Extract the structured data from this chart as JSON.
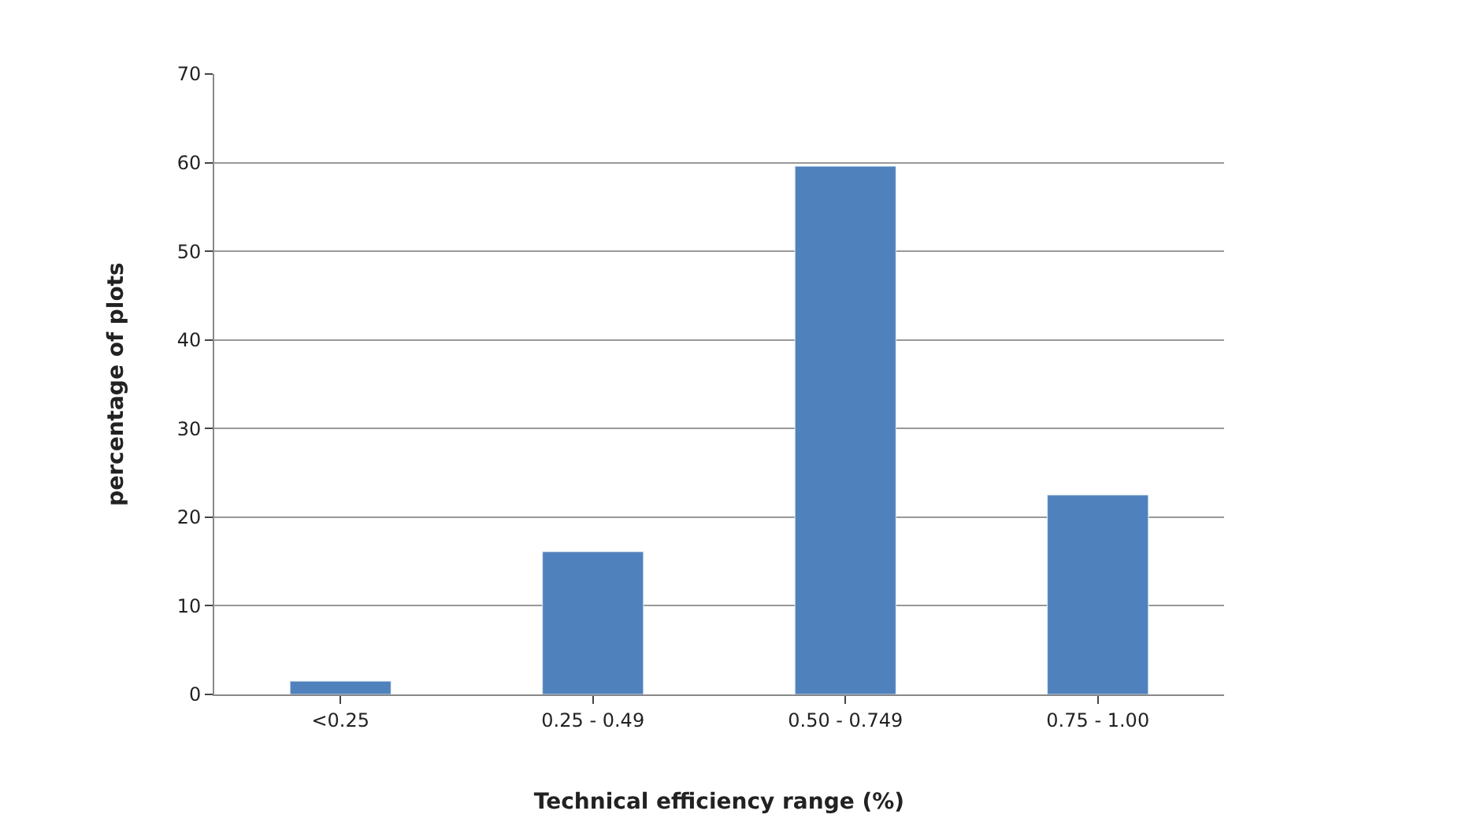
{
  "chart_data": {
    "type": "bar",
    "xlabel": "Technical efficiency range (%)",
    "ylabel": "percentage of plots",
    "categories": [
      "<0.25",
      "0.25 - 0.49",
      "0.50 - 0.749",
      "0.75 - 1.00"
    ],
    "values": [
      1.5,
      16.1,
      59.6,
      22.5
    ],
    "color": "#4f81bd",
    "ylim": [
      0,
      70
    ],
    "yticks": [
      0,
      10,
      20,
      30,
      40,
      50,
      60,
      70
    ],
    "grid": "y",
    "legend": false
  }
}
